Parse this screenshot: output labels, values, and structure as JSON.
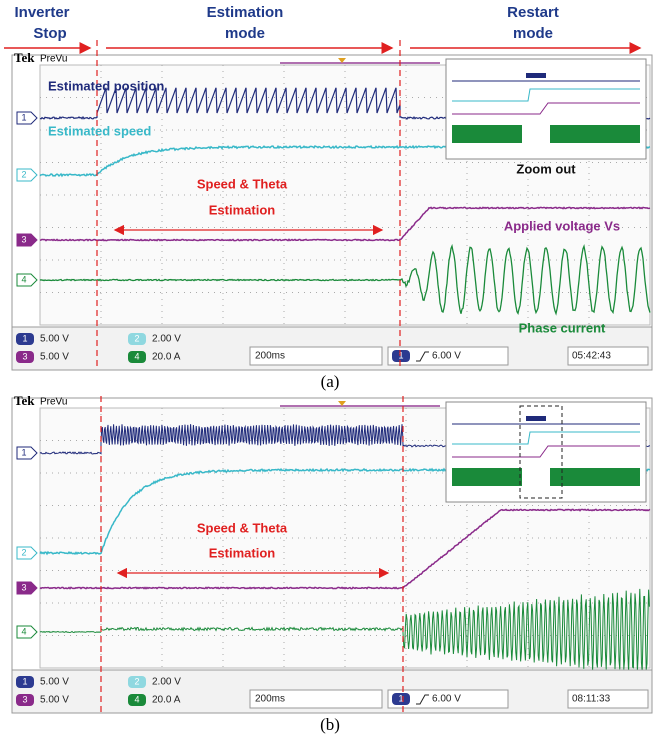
{
  "header": {
    "phases": [
      [
        "Inverter",
        "Stop"
      ],
      [
        "Estimation",
        "mode"
      ],
      [
        "Restart",
        "mode"
      ]
    ]
  },
  "panels": [
    {
      "brand": "Tek",
      "mode": "PreVu",
      "channels": [
        "1",
        "2",
        "3",
        "4"
      ],
      "annotations": [
        "Estimated position",
        "Estimated speed",
        "Zoom out",
        "Speed & Theta",
        "Estimation",
        "Applied voltage Vs",
        "Phase current"
      ],
      "readouts": {
        "ch1": "5.00 V",
        "ch2": "2.00 V",
        "ch3": "5.00 V",
        "ch4": "20.0 A",
        "timebase": "200ms",
        "trigger": "6.00 V",
        "clock": "05:42:43"
      },
      "caption": "(a)"
    },
    {
      "brand": "Tek",
      "mode": "PreVu",
      "channels": [
        "1",
        "2",
        "3",
        "4"
      ],
      "annotations": [
        "Speed & Theta",
        "Estimation"
      ],
      "readouts": {
        "ch1": "5.00 V",
        "ch2": "2.00 V",
        "ch3": "5.00 V",
        "ch4": "20.0 A",
        "timebase": "200ms",
        "trigger": "6.00 V",
        "clock": "08:11:33"
      },
      "caption": "(b)"
    }
  ]
}
